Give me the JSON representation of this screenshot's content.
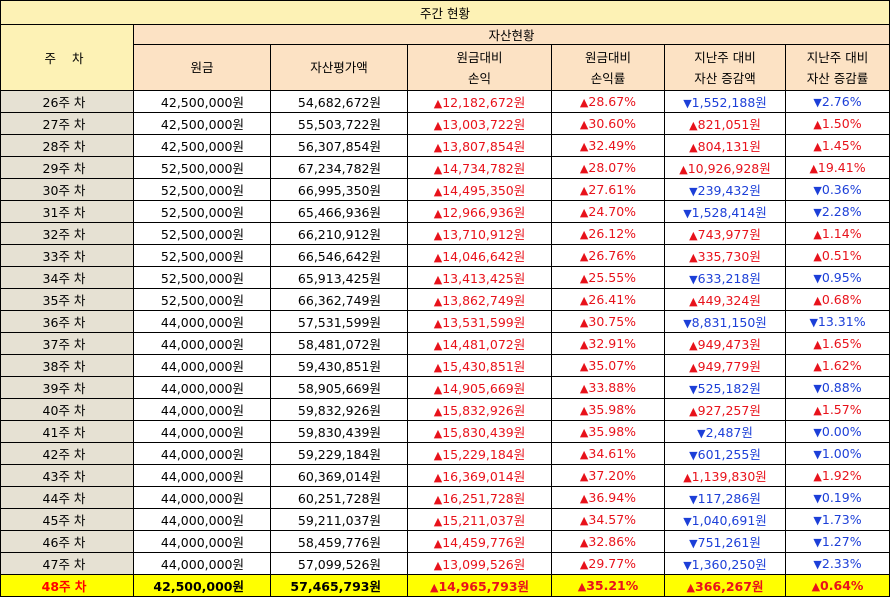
{
  "title": "주간 현황",
  "group_header": "자산현황",
  "columns": {
    "week": "주 차",
    "principal": "원금",
    "valuation": "자산평가액",
    "pl_line1": "원금대비",
    "pl_line2": "손익",
    "rate_line1": "원금대비",
    "rate_line2": "손익률",
    "chg_line1": "지난주 대비",
    "chg_line2": "자산 증감액",
    "chgrate_line1": "지난주 대비",
    "chgrate_line2": "자산 증감률"
  },
  "symbols": {
    "up": "▲",
    "down": "▼"
  },
  "colors": {
    "up": "#e8121b",
    "down": "#1c3fd8",
    "highlight": "#ffff00",
    "header": "#fce2c4",
    "title": "#fdf2b5"
  },
  "rows": [
    {
      "week": "26주 차",
      "principal": "42,500,000원",
      "valuation": "54,682,672원",
      "pl": "12,182,672원",
      "rate": "28.67%",
      "chg_dir": "down",
      "chg": "1,552,188원",
      "chgrate_dir": "down",
      "chgrate": "2.76%"
    },
    {
      "week": "27주 차",
      "principal": "42,500,000원",
      "valuation": "55,503,722원",
      "pl": "13,003,722원",
      "rate": "30.60%",
      "chg_dir": "up",
      "chg": "821,051원",
      "chgrate_dir": "up",
      "chgrate": "1.50%"
    },
    {
      "week": "28주 차",
      "principal": "42,500,000원",
      "valuation": "56,307,854원",
      "pl": "13,807,854원",
      "rate": "32.49%",
      "chg_dir": "up",
      "chg": "804,131원",
      "chgrate_dir": "up",
      "chgrate": "1.45%"
    },
    {
      "week": "29주 차",
      "principal": "52,500,000원",
      "valuation": "67,234,782원",
      "pl": "14,734,782원",
      "rate": "28.07%",
      "chg_dir": "up",
      "chg": "10,926,928원",
      "chgrate_dir": "up",
      "chgrate": "19.41%"
    },
    {
      "week": "30주 차",
      "principal": "52,500,000원",
      "valuation": "66,995,350원",
      "pl": "14,495,350원",
      "rate": "27.61%",
      "chg_dir": "down",
      "chg": "239,432원",
      "chgrate_dir": "down",
      "chgrate": "0.36%"
    },
    {
      "week": "31주 차",
      "principal": "52,500,000원",
      "valuation": "65,466,936원",
      "pl": "12,966,936원",
      "rate": "24.70%",
      "chg_dir": "down",
      "chg": "1,528,414원",
      "chgrate_dir": "down",
      "chgrate": "2.28%"
    },
    {
      "week": "32주 차",
      "principal": "52,500,000원",
      "valuation": "66,210,912원",
      "pl": "13,710,912원",
      "rate": "26.12%",
      "chg_dir": "up",
      "chg": "743,977원",
      "chgrate_dir": "up",
      "chgrate": "1.14%"
    },
    {
      "week": "33주 차",
      "principal": "52,500,000원",
      "valuation": "66,546,642원",
      "pl": "14,046,642원",
      "rate": "26.76%",
      "chg_dir": "up",
      "chg": "335,730원",
      "chgrate_dir": "up",
      "chgrate": "0.51%"
    },
    {
      "week": "34주 차",
      "principal": "52,500,000원",
      "valuation": "65,913,425원",
      "pl": "13,413,425원",
      "rate": "25.55%",
      "chg_dir": "down",
      "chg": "633,218원",
      "chgrate_dir": "down",
      "chgrate": "0.95%"
    },
    {
      "week": "35주 차",
      "principal": "52,500,000원",
      "valuation": "66,362,749원",
      "pl": "13,862,749원",
      "rate": "26.41%",
      "chg_dir": "up",
      "chg": "449,324원",
      "chgrate_dir": "up",
      "chgrate": "0.68%"
    },
    {
      "week": "36주 차",
      "principal": "44,000,000원",
      "valuation": "57,531,599원",
      "pl": "13,531,599원",
      "rate": "30.75%",
      "chg_dir": "down",
      "chg": "8,831,150원",
      "chgrate_dir": "down",
      "chgrate": "13.31%"
    },
    {
      "week": "37주 차",
      "principal": "44,000,000원",
      "valuation": "58,481,072원",
      "pl": "14,481,072원",
      "rate": "32.91%",
      "chg_dir": "up",
      "chg": "949,473원",
      "chgrate_dir": "up",
      "chgrate": "1.65%"
    },
    {
      "week": "38주 차",
      "principal": "44,000,000원",
      "valuation": "59,430,851원",
      "pl": "15,430,851원",
      "rate": "35.07%",
      "chg_dir": "up",
      "chg": "949,779원",
      "chgrate_dir": "up",
      "chgrate": "1.62%"
    },
    {
      "week": "39주 차",
      "principal": "44,000,000원",
      "valuation": "58,905,669원",
      "pl": "14,905,669원",
      "rate": "33.88%",
      "chg_dir": "down",
      "chg": "525,182원",
      "chgrate_dir": "down",
      "chgrate": "0.88%"
    },
    {
      "week": "40주 차",
      "principal": "44,000,000원",
      "valuation": "59,832,926원",
      "pl": "15,832,926원",
      "rate": "35.98%",
      "chg_dir": "up",
      "chg": "927,257원",
      "chgrate_dir": "up",
      "chgrate": "1.57%"
    },
    {
      "week": "41주 차",
      "principal": "44,000,000원",
      "valuation": "59,830,439원",
      "pl": "15,830,439원",
      "rate": "35.98%",
      "chg_dir": "down",
      "chg": "2,487원",
      "chgrate_dir": "down",
      "chgrate": "0.00%"
    },
    {
      "week": "42주 차",
      "principal": "44,000,000원",
      "valuation": "59,229,184원",
      "pl": "15,229,184원",
      "rate": "34.61%",
      "chg_dir": "down",
      "chg": "601,255원",
      "chgrate_dir": "down",
      "chgrate": "1.00%"
    },
    {
      "week": "43주 차",
      "principal": "44,000,000원",
      "valuation": "60,369,014원",
      "pl": "16,369,014원",
      "rate": "37.20%",
      "chg_dir": "up",
      "chg": "1,139,830원",
      "chgrate_dir": "up",
      "chgrate": "1.92%"
    },
    {
      "week": "44주 차",
      "principal": "44,000,000원",
      "valuation": "60,251,728원",
      "pl": "16,251,728원",
      "rate": "36.94%",
      "chg_dir": "down",
      "chg": "117,286원",
      "chgrate_dir": "down",
      "chgrate": "0.19%"
    },
    {
      "week": "45주 차",
      "principal": "44,000,000원",
      "valuation": "59,211,037원",
      "pl": "15,211,037원",
      "rate": "34.57%",
      "chg_dir": "down",
      "chg": "1,040,691원",
      "chgrate_dir": "down",
      "chgrate": "1.73%"
    },
    {
      "week": "46주 차",
      "principal": "44,000,000원",
      "valuation": "58,459,776원",
      "pl": "14,459,776원",
      "rate": "32.86%",
      "chg_dir": "down",
      "chg": "751,261원",
      "chgrate_dir": "down",
      "chgrate": "1.27%"
    },
    {
      "week": "47주 차",
      "principal": "44,000,000원",
      "valuation": "57,099,526원",
      "pl": "13,099,526원",
      "rate": "29.77%",
      "chg_dir": "down",
      "chg": "1,360,250원",
      "chgrate_dir": "down",
      "chgrate": "2.33%"
    },
    {
      "week": "48주 차",
      "principal": "42,500,000원",
      "valuation": "57,465,793원",
      "pl": "14,965,793원",
      "rate": "35.21%",
      "chg_dir": "up",
      "chg": "366,267원",
      "chgrate_dir": "up",
      "chgrate": "0.64%",
      "highlight": true
    }
  ]
}
